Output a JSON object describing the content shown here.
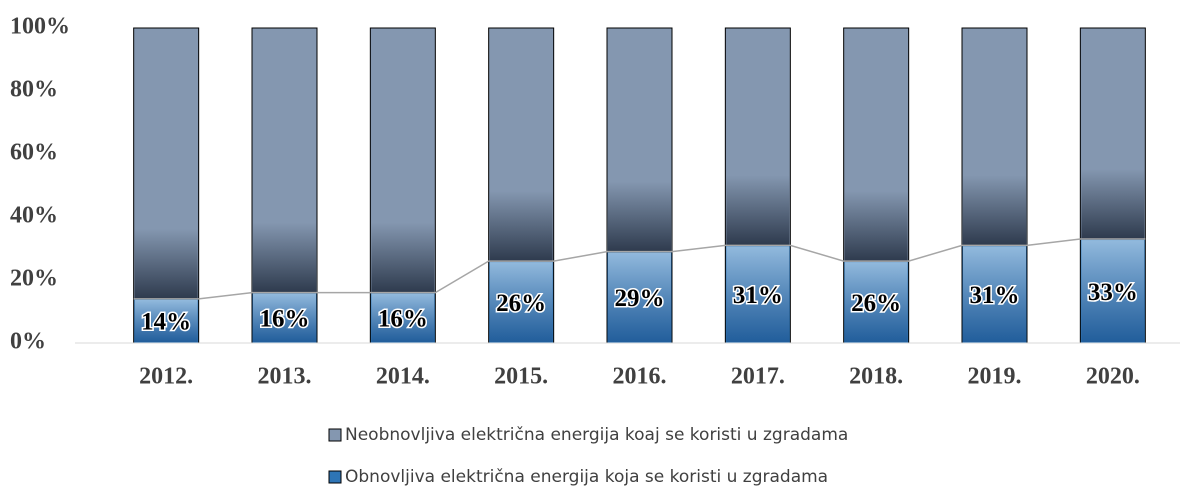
{
  "chart_data": {
    "type": "stacked_bar",
    "categories": [
      "2012.",
      "2013.",
      "2014.",
      "2015.",
      "2016.",
      "2017.",
      "2018.",
      "2019.",
      "2020."
    ],
    "series": [
      {
        "name": "Obnovljiva električna energija koja se koristi u zgradama",
        "color": "#2e75b6",
        "values": [
          14,
          16,
          16,
          26,
          29,
          31,
          26,
          31,
          33
        ],
        "value_labels": [
          "14%",
          "16%",
          "16%",
          "26%",
          "29%",
          "31%",
          "26%",
          "31%",
          "33%"
        ]
      },
      {
        "name": "Neobnovljiva električna energija koaj se koristi u zgradama",
        "color": "#8497b0",
        "values": [
          86,
          84,
          84,
          74,
          71,
          69,
          74,
          69,
          67
        ]
      }
    ],
    "ylim": [
      0,
      100
    ],
    "yticks": [
      {
        "value": 0,
        "label": "0%"
      },
      {
        "value": 20,
        "label": "20%"
      },
      {
        "value": 40,
        "label": "40%"
      },
      {
        "value": 60,
        "label": "60%"
      },
      {
        "value": 80,
        "label": "80%"
      },
      {
        "value": 100,
        "label": "100%"
      }
    ],
    "grid": false
  }
}
